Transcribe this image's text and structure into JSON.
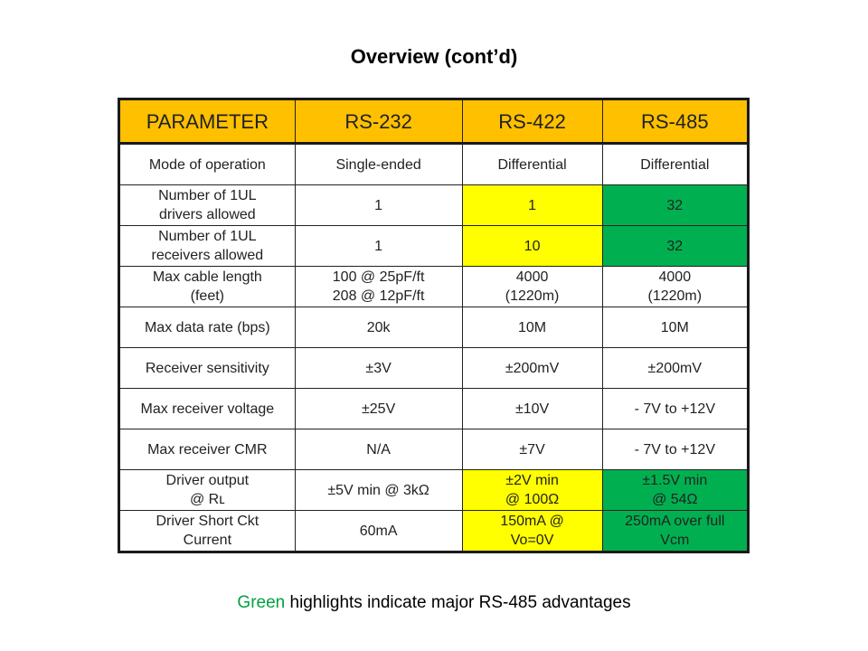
{
  "title": "Overview (cont’d)",
  "colors": {
    "header": "#FFC000",
    "yellow": "#FFFF00",
    "green": "#00B050"
  },
  "table": {
    "headers": [
      "PARAMETER",
      "RS-232",
      "RS-422",
      "RS-485"
    ],
    "rows": [
      {
        "param": [
          "Mode of operation"
        ],
        "cells": [
          {
            "lines": [
              "Single-ended"
            ]
          },
          {
            "lines": [
              "Differential"
            ]
          },
          {
            "lines": [
              "Differential"
            ]
          }
        ]
      },
      {
        "param": [
          "Number of 1UL",
          "drivers allowed"
        ],
        "cells": [
          {
            "lines": [
              "1"
            ]
          },
          {
            "lines": [
              "1"
            ],
            "highlight": "yellow"
          },
          {
            "lines": [
              "32"
            ],
            "highlight": "green"
          }
        ]
      },
      {
        "param": [
          "Number of 1UL",
          "receivers allowed"
        ],
        "cells": [
          {
            "lines": [
              "1"
            ]
          },
          {
            "lines": [
              "10"
            ],
            "highlight": "yellow"
          },
          {
            "lines": [
              "32"
            ],
            "highlight": "green"
          }
        ]
      },
      {
        "param": [
          "Max cable length",
          "(feet)"
        ],
        "cells": [
          {
            "lines": [
              "100 @ 25pF/ft",
              "208 @ 12pF/ft"
            ]
          },
          {
            "lines": [
              "4000",
              "(1220m)"
            ]
          },
          {
            "lines": [
              "4000",
              "(1220m)"
            ]
          }
        ]
      },
      {
        "param": [
          "Max data rate (bps)"
        ],
        "cells": [
          {
            "lines": [
              "20k"
            ]
          },
          {
            "lines": [
              "10M"
            ]
          },
          {
            "lines": [
              "10M"
            ]
          }
        ]
      },
      {
        "param": [
          "Receiver sensitivity"
        ],
        "cells": [
          {
            "lines": [
              "±3V"
            ]
          },
          {
            "lines": [
              "±200mV"
            ]
          },
          {
            "lines": [
              "±200mV"
            ]
          }
        ]
      },
      {
        "param": [
          "Max receiver voltage"
        ],
        "cells": [
          {
            "lines": [
              "±25V"
            ]
          },
          {
            "lines": [
              "±10V"
            ]
          },
          {
            "lines": [
              "- 7V to +12V"
            ]
          }
        ]
      },
      {
        "param": [
          "Max receiver CMR"
        ],
        "cells": [
          {
            "lines": [
              "N/A"
            ]
          },
          {
            "lines": [
              "±7V"
            ]
          },
          {
            "lines": [
              "- 7V to +12V"
            ]
          }
        ]
      },
      {
        "param": [
          "Driver output",
          "@ Rʟ"
        ],
        "cells": [
          {
            "lines": [
              "±5V min @ 3kΩ"
            ]
          },
          {
            "lines": [
              "±2V min",
              "@ 100Ω"
            ],
            "highlight": "yellow"
          },
          {
            "lines": [
              "±1.5V min",
              "@ 54Ω"
            ],
            "highlight": "green"
          }
        ]
      },
      {
        "param": [
          "Driver Short Ckt",
          "Current"
        ],
        "cells": [
          {
            "lines": [
              "60mA"
            ]
          },
          {
            "lines": [
              "150mA @",
              "Vo=0V"
            ],
            "highlight": "yellow"
          },
          {
            "lines": [
              "250mA over full",
              "Vcm"
            ],
            "highlight": "green"
          }
        ]
      }
    ]
  },
  "footer": {
    "highlight_word": "Green",
    "rest": " highlights indicate major RS-485 advantages"
  }
}
